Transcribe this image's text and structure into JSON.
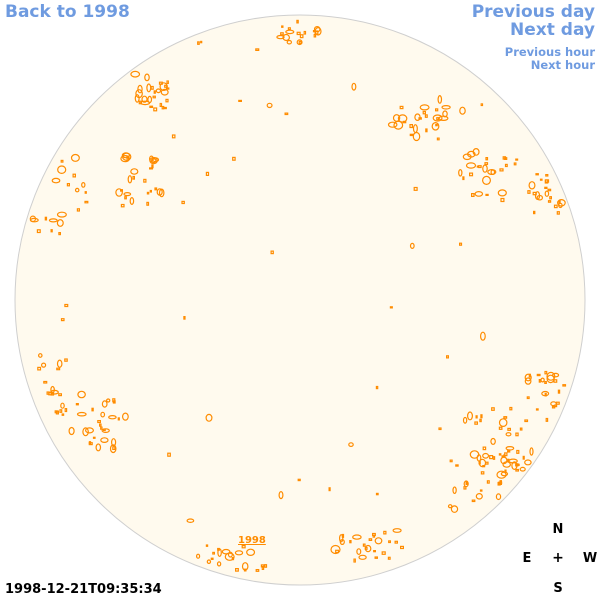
{
  "nav": {
    "back": "Back to 1998",
    "previous_day": "Previous day",
    "next_day": "Next day",
    "previous_hour": "Previous hour",
    "next_hour": "Next hour"
  },
  "compass": {
    "north": "N",
    "east": "E",
    "center": "+",
    "west": "W",
    "south": "S"
  },
  "timestamp": "1998-12-21T09:35:34",
  "year_label": "1998",
  "colors": {
    "link": "#6f9be0",
    "disk_fill": "#fffaee",
    "disk_stroke": "#cfcfcf",
    "feature": "#ff8c00"
  }
}
